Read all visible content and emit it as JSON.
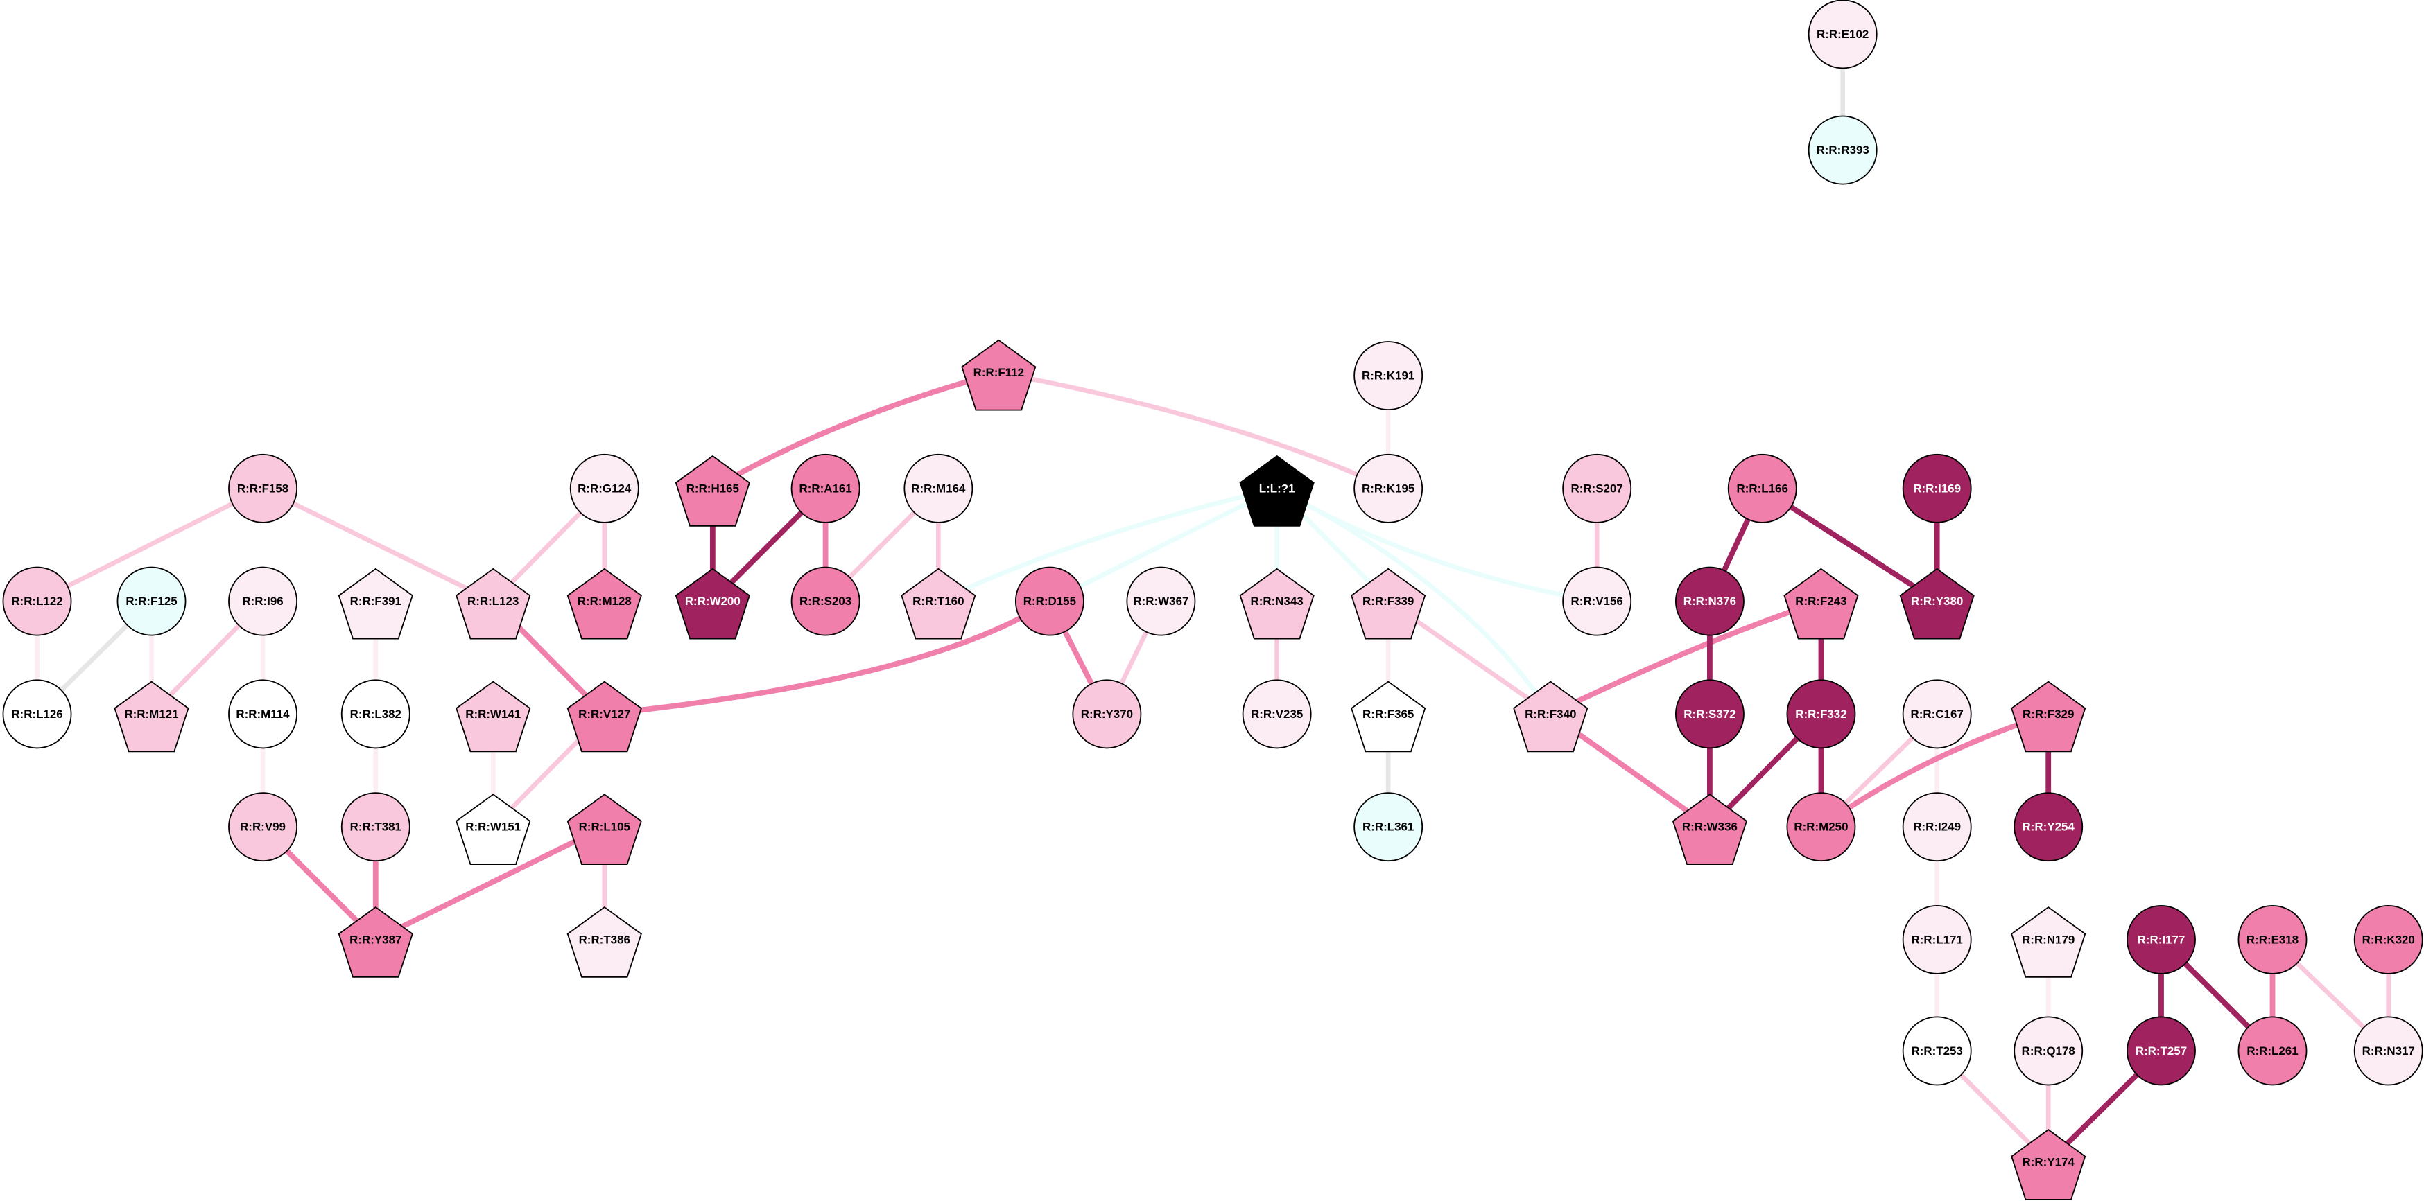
{
  "colors": {
    "white": "#ffffff",
    "lightest_pink": "#fcecf3",
    "light_pink": "#f9c8dc",
    "mid_pink": "#f07fab",
    "dark_magenta": "#a0225e",
    "cyan": "#e9fdfd",
    "ligand": "#000000",
    "grey_edge": "#e6e6e6",
    "node_stroke": "#000000"
  },
  "nodes": [
    {
      "label": "R:R:E102",
      "shape": "circle",
      "fill": "lightest_pink"
    },
    {
      "label": "R:R:R393",
      "shape": "circle",
      "fill": "cyan"
    },
    {
      "label": "R:R:F112",
      "shape": "pentagon",
      "fill": "mid_pink"
    },
    {
      "label": "R:R:K191",
      "shape": "circle",
      "fill": "lightest_pink"
    },
    {
      "label": "R:R:F158",
      "shape": "circle",
      "fill": "light_pink"
    },
    {
      "label": "R:R:G124",
      "shape": "circle",
      "fill": "lightest_pink"
    },
    {
      "label": "R:R:H165",
      "shape": "pentagon",
      "fill": "mid_pink"
    },
    {
      "label": "R:R:A161",
      "shape": "circle",
      "fill": "mid_pink"
    },
    {
      "label": "R:R:M164",
      "shape": "circle",
      "fill": "lightest_pink"
    },
    {
      "label": "L:L:?1",
      "shape": "pentagon",
      "fill": "ligand"
    },
    {
      "label": "R:R:K195",
      "shape": "circle",
      "fill": "lightest_pink"
    },
    {
      "label": "R:R:S207",
      "shape": "circle",
      "fill": "light_pink"
    },
    {
      "label": "R:R:L166",
      "shape": "circle",
      "fill": "mid_pink"
    },
    {
      "label": "R:R:I169",
      "shape": "circle",
      "fill": "dark_magenta"
    },
    {
      "label": "R:R:L122",
      "shape": "circle",
      "fill": "light_pink"
    },
    {
      "label": "R:R:F125",
      "shape": "circle",
      "fill": "cyan"
    },
    {
      "label": "R:R:I96",
      "shape": "circle",
      "fill": "lightest_pink"
    },
    {
      "label": "R:R:F391",
      "shape": "pentagon",
      "fill": "lightest_pink"
    },
    {
      "label": "R:R:L123",
      "shape": "pentagon",
      "fill": "light_pink"
    },
    {
      "label": "R:R:M128",
      "shape": "pentagon",
      "fill": "mid_pink"
    },
    {
      "label": "R:R:W200",
      "shape": "pentagon",
      "fill": "dark_magenta"
    },
    {
      "label": "R:R:S203",
      "shape": "circle",
      "fill": "mid_pink"
    },
    {
      "label": "R:R:T160",
      "shape": "pentagon",
      "fill": "light_pink"
    },
    {
      "label": "R:R:D155",
      "shape": "circle",
      "fill": "mid_pink"
    },
    {
      "label": "R:R:W367",
      "shape": "circle",
      "fill": "lightest_pink"
    },
    {
      "label": "R:R:N343",
      "shape": "pentagon",
      "fill": "light_pink"
    },
    {
      "label": "R:R:F339",
      "shape": "pentagon",
      "fill": "light_pink"
    },
    {
      "label": "R:R:V156",
      "shape": "circle",
      "fill": "lightest_pink"
    },
    {
      "label": "R:R:N376",
      "shape": "circle",
      "fill": "dark_magenta"
    },
    {
      "label": "R:R:F243",
      "shape": "pentagon",
      "fill": "mid_pink"
    },
    {
      "label": "R:R:Y380",
      "shape": "pentagon",
      "fill": "dark_magenta"
    },
    {
      "label": "R:R:L126",
      "shape": "circle",
      "fill": "white"
    },
    {
      "label": "R:R:M121",
      "shape": "pentagon",
      "fill": "light_pink"
    },
    {
      "label": "R:R:M114",
      "shape": "circle",
      "fill": "white"
    },
    {
      "label": "R:R:L382",
      "shape": "circle",
      "fill": "white"
    },
    {
      "label": "R:R:W141",
      "shape": "pentagon",
      "fill": "light_pink"
    },
    {
      "label": "R:R:V127",
      "shape": "pentagon",
      "fill": "mid_pink"
    },
    {
      "label": "R:R:Y370",
      "shape": "circle",
      "fill": "light_pink"
    },
    {
      "label": "R:R:V235",
      "shape": "circle",
      "fill": "lightest_pink"
    },
    {
      "label": "R:R:F365",
      "shape": "pentagon",
      "fill": "white"
    },
    {
      "label": "R:R:F340",
      "shape": "pentagon",
      "fill": "light_pink"
    },
    {
      "label": "R:R:S372",
      "shape": "circle",
      "fill": "dark_magenta"
    },
    {
      "label": "R:R:F332",
      "shape": "circle",
      "fill": "dark_magenta"
    },
    {
      "label": "R:R:C167",
      "shape": "circle",
      "fill": "lightest_pink"
    },
    {
      "label": "R:R:F329",
      "shape": "pentagon",
      "fill": "mid_pink"
    },
    {
      "label": "R:R:V99",
      "shape": "circle",
      "fill": "light_pink"
    },
    {
      "label": "R:R:T381",
      "shape": "circle",
      "fill": "light_pink"
    },
    {
      "label": "R:R:W151",
      "shape": "pentagon",
      "fill": "white"
    },
    {
      "label": "R:R:L105",
      "shape": "pentagon",
      "fill": "mid_pink"
    },
    {
      "label": "R:R:L361",
      "shape": "circle",
      "fill": "cyan"
    },
    {
      "label": "R:R:W336",
      "shape": "pentagon",
      "fill": "mid_pink"
    },
    {
      "label": "R:R:M250",
      "shape": "circle",
      "fill": "mid_pink"
    },
    {
      "label": "R:R:I249",
      "shape": "circle",
      "fill": "lightest_pink"
    },
    {
      "label": "R:R:Y254",
      "shape": "circle",
      "fill": "dark_magenta"
    },
    {
      "label": "R:R:Y387",
      "shape": "pentagon",
      "fill": "mid_pink"
    },
    {
      "label": "R:R:T386",
      "shape": "pentagon",
      "fill": "lightest_pink"
    },
    {
      "label": "R:R:L171",
      "shape": "circle",
      "fill": "lightest_pink"
    },
    {
      "label": "R:R:N179",
      "shape": "pentagon",
      "fill": "lightest_pink"
    },
    {
      "label": "R:R:I177",
      "shape": "circle",
      "fill": "dark_magenta"
    },
    {
      "label": "R:R:E318",
      "shape": "circle",
      "fill": "mid_pink"
    },
    {
      "label": "R:R:K320",
      "shape": "circle",
      "fill": "mid_pink"
    },
    {
      "label": "R:R:T253",
      "shape": "circle",
      "fill": "white"
    },
    {
      "label": "R:R:Q178",
      "shape": "circle",
      "fill": "lightest_pink"
    },
    {
      "label": "R:R:T257",
      "shape": "circle",
      "fill": "dark_magenta"
    },
    {
      "label": "R:R:L261",
      "shape": "circle",
      "fill": "mid_pink"
    },
    {
      "label": "R:R:N317",
      "shape": "circle",
      "fill": "lightest_pink"
    },
    {
      "label": "R:R:Y174",
      "shape": "pentagon",
      "fill": "mid_pink"
    }
  ],
  "edges": [
    {
      "source": "R:R:E102",
      "target": "R:R:R393",
      "color": "grey_edge"
    },
    {
      "source": "R:R:F112",
      "target": "R:R:H165",
      "color": "mid_pink"
    },
    {
      "source": "R:R:F112",
      "target": "R:R:K195",
      "color": "light_pink"
    },
    {
      "source": "R:R:K191",
      "target": "R:R:K195",
      "color": "lightest_pink"
    },
    {
      "source": "R:R:F158",
      "target": "R:R:L122",
      "color": "light_pink"
    },
    {
      "source": "R:R:F158",
      "target": "R:R:L123",
      "color": "light_pink"
    },
    {
      "source": "R:R:G124",
      "target": "R:R:L123",
      "color": "light_pink"
    },
    {
      "source": "R:R:G124",
      "target": "R:R:M128",
      "color": "light_pink"
    },
    {
      "source": "R:R:H165",
      "target": "R:R:W200",
      "color": "dark_magenta"
    },
    {
      "source": "R:R:A161",
      "target": "R:R:W200",
      "color": "dark_magenta"
    },
    {
      "source": "R:R:A161",
      "target": "R:R:S203",
      "color": "mid_pink"
    },
    {
      "source": "R:R:M164",
      "target": "R:R:S203",
      "color": "light_pink"
    },
    {
      "source": "R:R:M164",
      "target": "R:R:T160",
      "color": "light_pink"
    },
    {
      "source": "L:L:?1",
      "target": "R:R:T160",
      "color": "cyan"
    },
    {
      "source": "L:L:?1",
      "target": "R:R:D155",
      "color": "cyan"
    },
    {
      "source": "L:L:?1",
      "target": "R:R:N343",
      "color": "cyan"
    },
    {
      "source": "L:L:?1",
      "target": "R:R:F339",
      "color": "cyan"
    },
    {
      "source": "L:L:?1",
      "target": "R:R:F340",
      "color": "cyan"
    },
    {
      "source": "L:L:?1",
      "target": "R:R:V156",
      "color": "cyan"
    },
    {
      "source": "R:R:S207",
      "target": "R:R:V156",
      "color": "light_pink"
    },
    {
      "source": "R:R:L166",
      "target": "R:R:N376",
      "color": "dark_magenta"
    },
    {
      "source": "R:R:L166",
      "target": "R:R:Y380",
      "color": "dark_magenta"
    },
    {
      "source": "R:R:I169",
      "target": "R:R:Y380",
      "color": "dark_magenta"
    },
    {
      "source": "R:R:L122",
      "target": "R:R:L126",
      "color": "lightest_pink"
    },
    {
      "source": "R:R:F125",
      "target": "R:R:L126",
      "color": "grey_edge"
    },
    {
      "source": "R:R:F125",
      "target": "R:R:M121",
      "color": "lightest_pink"
    },
    {
      "source": "R:R:I96",
      "target": "R:R:M121",
      "color": "light_pink"
    },
    {
      "source": "R:R:I96",
      "target": "R:R:M114",
      "color": "lightest_pink"
    },
    {
      "source": "R:R:F391",
      "target": "R:R:L382",
      "color": "lightest_pink"
    },
    {
      "source": "R:R:L123",
      "target": "R:R:V127",
      "color": "mid_pink"
    },
    {
      "source": "R:R:V127",
      "target": "R:R:D155",
      "color": "mid_pink"
    },
    {
      "source": "R:R:V127",
      "target": "R:R:W151",
      "color": "light_pink"
    },
    {
      "source": "R:R:W141",
      "target": "R:R:W151",
      "color": "lightest_pink"
    },
    {
      "source": "R:R:D155",
      "target": "R:R:Y370",
      "color": "mid_pink"
    },
    {
      "source": "R:R:W367",
      "target": "R:R:Y370",
      "color": "light_pink"
    },
    {
      "source": "R:R:N343",
      "target": "R:R:V235",
      "color": "light_pink"
    },
    {
      "source": "R:R:F339",
      "target": "R:R:F365",
      "color": "lightest_pink"
    },
    {
      "source": "R:R:F339",
      "target": "R:R:F340",
      "color": "light_pink"
    },
    {
      "source": "R:R:F365",
      "target": "R:R:L361",
      "color": "grey_edge"
    },
    {
      "source": "R:R:F340",
      "target": "R:R:F243",
      "color": "mid_pink"
    },
    {
      "source": "R:R:F340",
      "target": "R:R:W336",
      "color": "mid_pink"
    },
    {
      "source": "R:R:N376",
      "target": "R:R:S372",
      "color": "dark_magenta"
    },
    {
      "source": "R:R:S372",
      "target": "R:R:W336",
      "color": "dark_magenta"
    },
    {
      "source": "R:R:F243",
      "target": "R:R:F332",
      "color": "dark_magenta"
    },
    {
      "source": "R:R:F332",
      "target": "R:R:W336",
      "color": "dark_magenta"
    },
    {
      "source": "R:R:F332",
      "target": "R:R:M250",
      "color": "dark_magenta"
    },
    {
      "source": "R:R:C167",
      "target": "R:R:M250",
      "color": "light_pink"
    },
    {
      "source": "R:R:C167",
      "target": "R:R:I249",
      "color": "lightest_pink"
    },
    {
      "source": "R:R:F329",
      "target": "R:R:M250",
      "color": "mid_pink"
    },
    {
      "source": "R:R:F329",
      "target": "R:R:Y254",
      "color": "dark_magenta"
    },
    {
      "source": "R:R:M114",
      "target": "R:R:V99",
      "color": "lightest_pink"
    },
    {
      "source": "R:R:L382",
      "target": "R:R:T381",
      "color": "lightest_pink"
    },
    {
      "source": "R:R:V99",
      "target": "R:R:Y387",
      "color": "mid_pink"
    },
    {
      "source": "R:R:T381",
      "target": "R:R:Y387",
      "color": "mid_pink"
    },
    {
      "source": "R:R:L105",
      "target": "R:R:Y387",
      "color": "mid_pink"
    },
    {
      "source": "R:R:L105",
      "target": "R:R:T386",
      "color": "light_pink"
    },
    {
      "source": "R:R:I249",
      "target": "R:R:L171",
      "color": "lightest_pink"
    },
    {
      "source": "R:R:L171",
      "target": "R:R:T253",
      "color": "lightest_pink"
    },
    {
      "source": "R:R:T253",
      "target": "R:R:Y174",
      "color": "light_pink"
    },
    {
      "source": "R:R:N179",
      "target": "R:R:Q178",
      "color": "lightest_pink"
    },
    {
      "source": "R:R:Q178",
      "target": "R:R:Y174",
      "color": "light_pink"
    },
    {
      "source": "R:R:T257",
      "target": "R:R:Y174",
      "color": "dark_magenta"
    },
    {
      "source": "R:R:I177",
      "target": "R:R:T257",
      "color": "dark_magenta"
    },
    {
      "source": "R:R:I177",
      "target": "R:R:L261",
      "color": "dark_magenta"
    },
    {
      "source": "R:R:E318",
      "target": "R:R:L261",
      "color": "mid_pink"
    },
    {
      "source": "R:R:E318",
      "target": "R:R:N317",
      "color": "light_pink"
    },
    {
      "source": "R:R:K320",
      "target": "R:R:N317",
      "color": "light_pink"
    }
  ]
}
